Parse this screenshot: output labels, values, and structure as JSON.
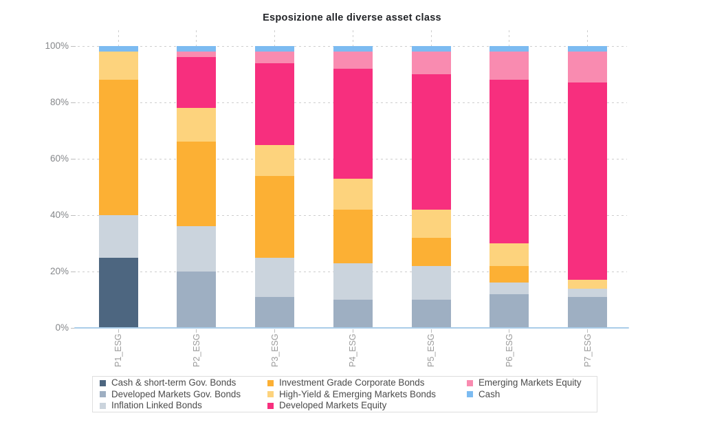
{
  "title": "Esposizione alle diverse asset class",
  "chart_data": {
    "type": "bar",
    "stacked": true,
    "title": "Esposizione alle diverse asset class",
    "xlabel": "",
    "ylabel": "",
    "ylim": [
      0,
      100
    ],
    "grid": true,
    "legend_position": "bottom",
    "categories": [
      "P1_ESG",
      "P2_ESG",
      "P3_ESG",
      "P4_ESG",
      "P5_ESG",
      "P6_ESG",
      "P7_ESG"
    ],
    "yticks": [
      "0%",
      "20%",
      "40%",
      "60%",
      "80%",
      "100%"
    ],
    "ytick_values": [
      0,
      20,
      40,
      60,
      80,
      100
    ],
    "series": [
      {
        "name": "Cash & short-term Gov. Bonds",
        "color": "#4d6680",
        "values": [
          25,
          0,
          0,
          0,
          0,
          0,
          0
        ]
      },
      {
        "name": "Developed Markets Gov. Bonds",
        "color": "#9eafc2",
        "values": [
          0,
          20,
          11,
          10,
          10,
          12,
          11
        ]
      },
      {
        "name": "Inflation Linked Bonds",
        "color": "#cbd4dd",
        "values": [
          15,
          16,
          14,
          13,
          12,
          4,
          3
        ]
      },
      {
        "name": "Investment Grade Corporate Bonds",
        "color": "#fcb034",
        "values": [
          48,
          30,
          29,
          19,
          10,
          6,
          0
        ]
      },
      {
        "name": "High-Yield & Emerging Markets Bonds",
        "color": "#fdd37d",
        "values": [
          10,
          12,
          11,
          11,
          10,
          8,
          3
        ]
      },
      {
        "name": "Developed Markets Equity",
        "color": "#f72f7e",
        "values": [
          0,
          18,
          29,
          39,
          48,
          58,
          70
        ]
      },
      {
        "name": "Emerging Markets Equity",
        "color": "#f98bb0",
        "values": [
          0,
          2,
          4,
          6,
          8,
          10,
          11
        ]
      },
      {
        "name": "Cash",
        "color": "#7cbbf1",
        "values": [
          2,
          2,
          2,
          2,
          2,
          2,
          2
        ]
      }
    ]
  },
  "legend": {
    "columns": [
      [
        0,
        1,
        2
      ],
      [
        3,
        4,
        5
      ],
      [
        6,
        7
      ]
    ]
  },
  "colors": {
    "axis_line": "#a9cce8",
    "gridline": "#cdcdcd",
    "y_label": "#85878a",
    "x_label": "#9a9a9a",
    "legend_text": "#4a4a4a",
    "title_text": "#222428"
  }
}
